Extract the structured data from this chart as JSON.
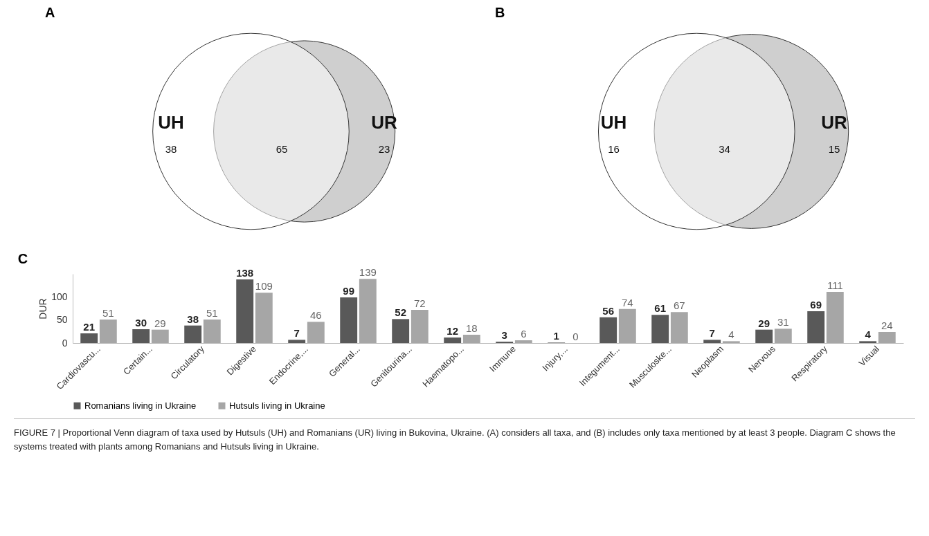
{
  "chart_data": [
    {
      "type": "other",
      "title": "A",
      "categories": [
        "UH",
        null,
        "UR"
      ],
      "values": [
        38,
        65,
        23
      ],
      "data_labels": true
    },
    {
      "type": "other",
      "title": "B",
      "categories": [
        "UH",
        null,
        "UR"
      ],
      "values": [
        16,
        34,
        15
      ],
      "data_labels": true
    },
    {
      "type": "bar",
      "title": "C",
      "ylabel": "DUR",
      "categories": [
        "Cardiovascu...",
        "Certain...",
        "Circulatory",
        "Digestive",
        "Endocrine,...",
        "General...",
        "Genitourina...",
        "Haematopo...",
        "Immune",
        "Injury,...",
        "Integument...",
        "Musculoske...",
        "Neoplasm",
        "Nervous",
        "Respiratory",
        "Visual"
      ],
      "series": [
        {
          "name": "Romanians living in Ukraine",
          "color": "#595959",
          "values": [
            21,
            30,
            38,
            138,
            7,
            99,
            52,
            12,
            3,
            1,
            56,
            61,
            7,
            29,
            69,
            4
          ]
        },
        {
          "name": "Hutsuls living in Ukraine",
          "color": "#a6a6a6",
          "values": [
            51,
            29,
            51,
            109,
            46,
            139,
            72,
            18,
            6,
            0,
            74,
            67,
            4,
            31,
            111,
            24
          ]
        }
      ],
      "ylim": [
        0,
        150
      ],
      "yticks": [
        0,
        50,
        100
      ],
      "data_labels": true,
      "legend": "bottom",
      "annotations": [
        "FIGURE 7 | Proportional Venn diagram of taxa used by Hutsuls (UH) and Romanians (UR) living in Bukovina, Ukraine. (A) considers all taxa, and (B) includes only taxa mentioned by at least 3 people. Diagram C shows the systems treated with plants among Romanians and Hutsuls living in Ukraine."
      ]
    }
  ]
}
